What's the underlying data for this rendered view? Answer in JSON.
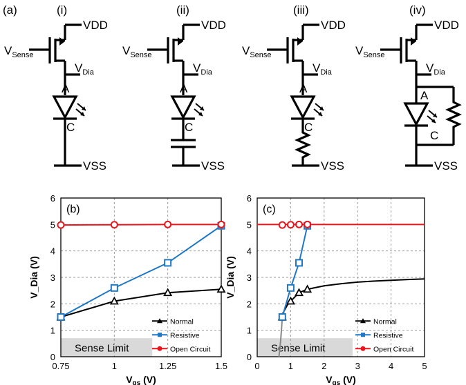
{
  "figure": {
    "panel_label": "(a)",
    "circuits": [
      {
        "label": "(i)",
        "load": "none"
      },
      {
        "label": "(ii)",
        "load": "capacitor"
      },
      {
        "label": "(iii)",
        "load": "resistor-series"
      },
      {
        "label": "(iv)",
        "load": "resistor-parallel"
      }
    ],
    "labels": {
      "vdd": "VDD",
      "vss": "VSS",
      "vsense_main": "V",
      "vsense_sub": "Sense",
      "vdia_main": "V",
      "vdia_sub": "Dia",
      "anode": "A",
      "cathode": "C"
    }
  },
  "chart_data": [
    {
      "type": "line",
      "panel": "(b)",
      "xlabel_main": "V",
      "xlabel_sub": "gs",
      "xlabel_unit": " (V)",
      "ylabel": "V_Dia (V)",
      "xlim": [
        0.75,
        1.5
      ],
      "ylim": [
        0,
        6
      ],
      "xticks": [
        0.75,
        1,
        1.25,
        1.5
      ],
      "xtick_labels": [
        "0.75",
        "1",
        "1.25",
        "1.5"
      ],
      "yticks": [
        0,
        1,
        2,
        3,
        4,
        5,
        6
      ],
      "grid": true,
      "legend_position": "lower-right",
      "sense_limit": {
        "label": "Sense Limit",
        "ymax": 0.7
      },
      "series": [
        {
          "name": "Normal",
          "color": "#000000",
          "marker": "triangle",
          "x": [
            0.75,
            1,
            1.25,
            1.5
          ],
          "y": [
            1.5,
            2.1,
            2.42,
            2.55
          ]
        },
        {
          "name": "Resistive",
          "color": "#1f77c4",
          "marker": "square",
          "x": [
            0.75,
            1,
            1.25,
            1.5
          ],
          "y": [
            1.5,
            2.6,
            3.55,
            4.95
          ]
        },
        {
          "name": "Open Circuit",
          "color": "#e8161c",
          "marker": "circle",
          "x": [
            0.75,
            1,
            1.25,
            1.5
          ],
          "y": [
            4.98,
            4.99,
            5.0,
            5.0
          ]
        }
      ]
    },
    {
      "type": "line",
      "panel": "(c)",
      "xlabel_main": "V",
      "xlabel_sub": "gs",
      "xlabel_unit": " (V)",
      "ylabel": "V_Dia (V)",
      "xlim": [
        0,
        5
      ],
      "ylim": [
        0,
        6
      ],
      "xticks": [
        0,
        1,
        2,
        3,
        4,
        5
      ],
      "xtick_labels": [
        "0",
        "1",
        "2",
        "3",
        "4",
        "5"
      ],
      "yticks": [
        0,
        1,
        2,
        3,
        4,
        5,
        6
      ],
      "grid": true,
      "legend_position": "lower-right",
      "sense_limit": {
        "label": "Sense Limit",
        "ymax": 0.7
      },
      "series": [
        {
          "name": "Normal",
          "color": "#000000",
          "marker": "triangle",
          "x": [
            0.75,
            1,
            1.25,
            1.5
          ],
          "y": [
            1.5,
            2.1,
            2.42,
            2.55
          ],
          "curve_x": [
            0.65,
            0.7,
            0.73,
            0.75,
            0.8,
            0.9,
            1.0,
            1.25,
            1.5,
            2.0,
            2.5,
            3.0,
            3.5,
            4.0,
            4.5,
            5.0
          ],
          "curve_y": [
            0.0,
            0.6,
            1.1,
            1.5,
            1.72,
            1.95,
            2.1,
            2.42,
            2.55,
            2.68,
            2.76,
            2.82,
            2.86,
            2.89,
            2.92,
            2.94
          ],
          "sub_threshold_color": "#888888"
        },
        {
          "name": "Resistive",
          "color": "#1f77c4",
          "marker": "square",
          "x": [
            0.75,
            1,
            1.25,
            1.5
          ],
          "y": [
            1.5,
            2.6,
            3.55,
            4.95
          ],
          "curve_x": [
            0.75,
            1,
            1.25,
            1.5,
            1.55
          ],
          "curve_y": [
            1.5,
            2.6,
            3.55,
            4.95,
            5.0
          ]
        },
        {
          "name": "Open Circuit",
          "color": "#e8161c",
          "marker": "circle",
          "x": [
            0.75,
            1,
            1.25,
            1.5
          ],
          "y": [
            4.98,
            4.99,
            5.0,
            5.0
          ],
          "curve_x": [
            0,
            5
          ],
          "curve_y": [
            5.0,
            5.0
          ]
        }
      ]
    }
  ]
}
